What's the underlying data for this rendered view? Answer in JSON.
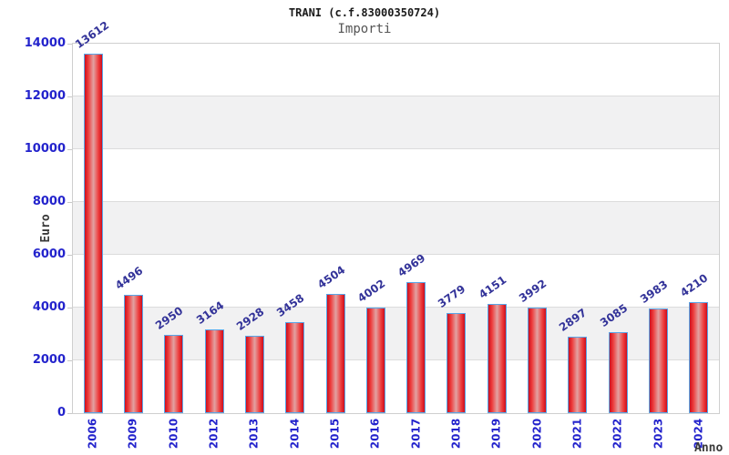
{
  "chart": {
    "title": "TRANI (c.f.83000350724)",
    "subtitle": "Importi",
    "ylabel": "Euro",
    "xlabel": "Anno"
  },
  "chart_data": {
    "type": "bar",
    "title": "TRANI (c.f.83000350724)",
    "subtitle": "Importi",
    "xlabel": "Anno",
    "ylabel": "Euro",
    "categories": [
      "2006",
      "2009",
      "2010",
      "2012",
      "2013",
      "2014",
      "2015",
      "2016",
      "2017",
      "2018",
      "2019",
      "2020",
      "2021",
      "2022",
      "2023",
      "2024"
    ],
    "values": [
      13612,
      4496,
      2950,
      3164,
      2928,
      3458,
      4504,
      4002,
      4969,
      3779,
      4151,
      3992,
      2897,
      3085,
      3983,
      4210
    ],
    "ylim": [
      0,
      14000
    ],
    "ytick_step": 2000,
    "grid": "horizontal",
    "band_fill": "alternating",
    "legend": "none",
    "colors": {
      "bar_red_edge": "#cc0f1e",
      "bar_red": "#ee3b3b",
      "bar_highlight": "#e2a2a2",
      "bar_border_blue": "#58a6e8",
      "tick_label_blue": "#2323cc",
      "value_label_navy": "#333399",
      "band_gray": "#f1f1f2",
      "gridline_gray": "#dcdcdc",
      "plot_border_gray": "#cfcfcf",
      "axis_title_gray": "#3a3a3a",
      "title_black": "#1a1a1a",
      "subtitle_gray": "#555555"
    }
  }
}
